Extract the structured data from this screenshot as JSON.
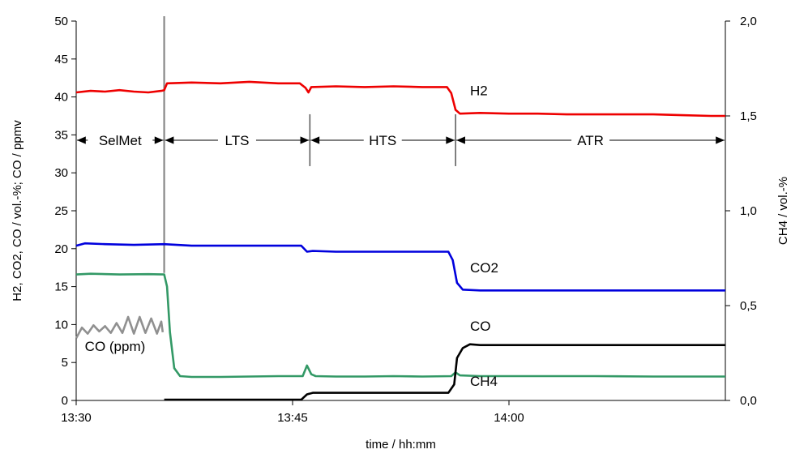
{
  "chart_data": {
    "type": "line",
    "title": "",
    "xlabel": "time / hh:mm",
    "ylabel": "H2, CO2, CO / vol.-%; CO / ppmv",
    "y2label": "CH4  / vol.-%",
    "xlim": [
      0,
      45
    ],
    "ylim": [
      0,
      50
    ],
    "y2lim": [
      0,
      2.0
    ],
    "x_ticks": [
      {
        "value": 0,
        "label": "13:30"
      },
      {
        "value": 15,
        "label": "13:45"
      },
      {
        "value": 30,
        "label": "14:00"
      }
    ],
    "y_ticks": [
      {
        "value": 0,
        "label": "0"
      },
      {
        "value": 5,
        "label": "5"
      },
      {
        "value": 10,
        "label": "10"
      },
      {
        "value": 15,
        "label": "15"
      },
      {
        "value": 20,
        "label": "20"
      },
      {
        "value": 25,
        "label": "25"
      },
      {
        "value": 30,
        "label": "30"
      },
      {
        "value": 35,
        "label": "35"
      },
      {
        "value": 40,
        "label": "40"
      },
      {
        "value": 45,
        "label": "45"
      },
      {
        "value": 50,
        "label": "50"
      }
    ],
    "y2_ticks": [
      {
        "value": 0.0,
        "label": "0,0"
      },
      {
        "value": 0.5,
        "label": "0,5"
      },
      {
        "value": 1.0,
        "label": "1,0"
      },
      {
        "value": 1.5,
        "label": "1,5"
      },
      {
        "value": 2.0,
        "label": "2,0"
      }
    ],
    "grid": false,
    "phases": [
      {
        "label": "SelMet",
        "x_start": 0,
        "x_end": 6.1
      },
      {
        "label": "LTS",
        "x_start": 6.1,
        "x_end": 16.2
      },
      {
        "label": "HTS",
        "x_start": 16.2,
        "x_end": 26.3
      },
      {
        "label": "ATR",
        "x_start": 26.3,
        "x_end": 45
      }
    ],
    "phase_row_y": 34.3,
    "divider": {
      "x": 6.1
    },
    "series": [
      {
        "name": "H2",
        "color": "#ee0000",
        "axis": "left",
        "label_at": [
          27.3,
          40.2
        ],
        "points": [
          [
            0,
            40.6
          ],
          [
            1,
            40.8
          ],
          [
            2,
            40.7
          ],
          [
            3,
            40.9
          ],
          [
            4,
            40.7
          ],
          [
            5,
            40.6
          ],
          [
            5.9,
            40.8
          ],
          [
            6.1,
            40.9
          ],
          [
            6.3,
            41.8
          ],
          [
            8,
            41.9
          ],
          [
            10,
            41.8
          ],
          [
            12,
            42.0
          ],
          [
            14,
            41.8
          ],
          [
            15.5,
            41.8
          ],
          [
            15.9,
            41.2
          ],
          [
            16.1,
            40.6
          ],
          [
            16.3,
            41.3
          ],
          [
            18,
            41.4
          ],
          [
            20,
            41.3
          ],
          [
            22,
            41.4
          ],
          [
            24,
            41.3
          ],
          [
            25.7,
            41.3
          ],
          [
            26.0,
            40.5
          ],
          [
            26.3,
            38.3
          ],
          [
            26.6,
            37.8
          ],
          [
            28,
            37.9
          ],
          [
            30,
            37.8
          ],
          [
            32,
            37.8
          ],
          [
            34,
            37.7
          ],
          [
            36,
            37.7
          ],
          [
            38,
            37.7
          ],
          [
            40,
            37.7
          ],
          [
            42,
            37.6
          ],
          [
            44,
            37.5
          ],
          [
            45,
            37.5
          ]
        ]
      },
      {
        "name": "CO2",
        "color": "#0000dd",
        "axis": "left",
        "label_at": [
          27.3,
          16.9
        ],
        "points": [
          [
            0,
            20.4
          ],
          [
            0.6,
            20.7
          ],
          [
            2,
            20.6
          ],
          [
            4,
            20.5
          ],
          [
            6.1,
            20.6
          ],
          [
            8,
            20.4
          ],
          [
            10,
            20.4
          ],
          [
            12,
            20.4
          ],
          [
            15.6,
            20.4
          ],
          [
            16.0,
            19.6
          ],
          [
            16.4,
            19.7
          ],
          [
            18,
            19.6
          ],
          [
            20,
            19.6
          ],
          [
            22,
            19.6
          ],
          [
            24,
            19.6
          ],
          [
            25.8,
            19.6
          ],
          [
            26.1,
            18.5
          ],
          [
            26.4,
            15.5
          ],
          [
            26.8,
            14.6
          ],
          [
            28,
            14.5
          ],
          [
            30,
            14.5
          ],
          [
            35,
            14.5
          ],
          [
            40,
            14.5
          ],
          [
            45,
            14.5
          ]
        ]
      },
      {
        "name": "CH4",
        "color": "#339966",
        "axis": "right",
        "label_at": [
          27.3,
          1.9
        ],
        "points": [
          [
            0,
            0.664
          ],
          [
            1,
            0.668
          ],
          [
            3,
            0.664
          ],
          [
            5,
            0.666
          ],
          [
            6.1,
            0.664
          ],
          [
            6.3,
            0.6
          ],
          [
            6.5,
            0.36
          ],
          [
            6.8,
            0.17
          ],
          [
            7.2,
            0.128
          ],
          [
            8,
            0.124
          ],
          [
            10,
            0.124
          ],
          [
            12,
            0.126
          ],
          [
            14,
            0.128
          ],
          [
            15.7,
            0.128
          ],
          [
            16.0,
            0.184
          ],
          [
            16.3,
            0.138
          ],
          [
            16.6,
            0.128
          ],
          [
            18,
            0.126
          ],
          [
            20,
            0.126
          ],
          [
            22,
            0.128
          ],
          [
            24,
            0.126
          ],
          [
            26,
            0.128
          ],
          [
            26.3,
            0.148
          ],
          [
            26.6,
            0.132
          ],
          [
            28,
            0.128
          ],
          [
            32,
            0.128
          ],
          [
            36,
            0.128
          ],
          [
            40,
            0.126
          ],
          [
            45,
            0.126
          ]
        ]
      },
      {
        "name": "CO",
        "color": "#000000",
        "axis": "left",
        "label_at": [
          27.3,
          9.2
        ],
        "points": [
          [
            6.1,
            0.1
          ],
          [
            8,
            0.1
          ],
          [
            10,
            0.1
          ],
          [
            13,
            0.1
          ],
          [
            15.6,
            0.1
          ],
          [
            16.0,
            0.8
          ],
          [
            16.4,
            1.0
          ],
          [
            18,
            1.0
          ],
          [
            22,
            1.0
          ],
          [
            25.8,
            1.0
          ],
          [
            26.2,
            2.1
          ],
          [
            26.4,
            5.6
          ],
          [
            26.8,
            6.9
          ],
          [
            27.3,
            7.4
          ],
          [
            28,
            7.3
          ],
          [
            30,
            7.3
          ],
          [
            35,
            7.3
          ],
          [
            40,
            7.3
          ],
          [
            45,
            7.3
          ]
        ]
      },
      {
        "name": "CO (ppm)",
        "color": "#909090",
        "axis": "left",
        "label_at": [
          0.6,
          6.5
        ],
        "points": [
          [
            0,
            8.2
          ],
          [
            0.4,
            9.6
          ],
          [
            0.8,
            8.8
          ],
          [
            1.2,
            9.9
          ],
          [
            1.6,
            9.1
          ],
          [
            2.0,
            9.8
          ],
          [
            2.4,
            8.9
          ],
          [
            2.8,
            10.2
          ],
          [
            3.2,
            8.9
          ],
          [
            3.6,
            11.0
          ],
          [
            4.0,
            8.8
          ],
          [
            4.4,
            11.0
          ],
          [
            4.8,
            8.9
          ],
          [
            5.2,
            10.8
          ],
          [
            5.6,
            8.8
          ],
          [
            5.9,
            10.4
          ],
          [
            6.0,
            9.0
          ]
        ]
      }
    ]
  }
}
